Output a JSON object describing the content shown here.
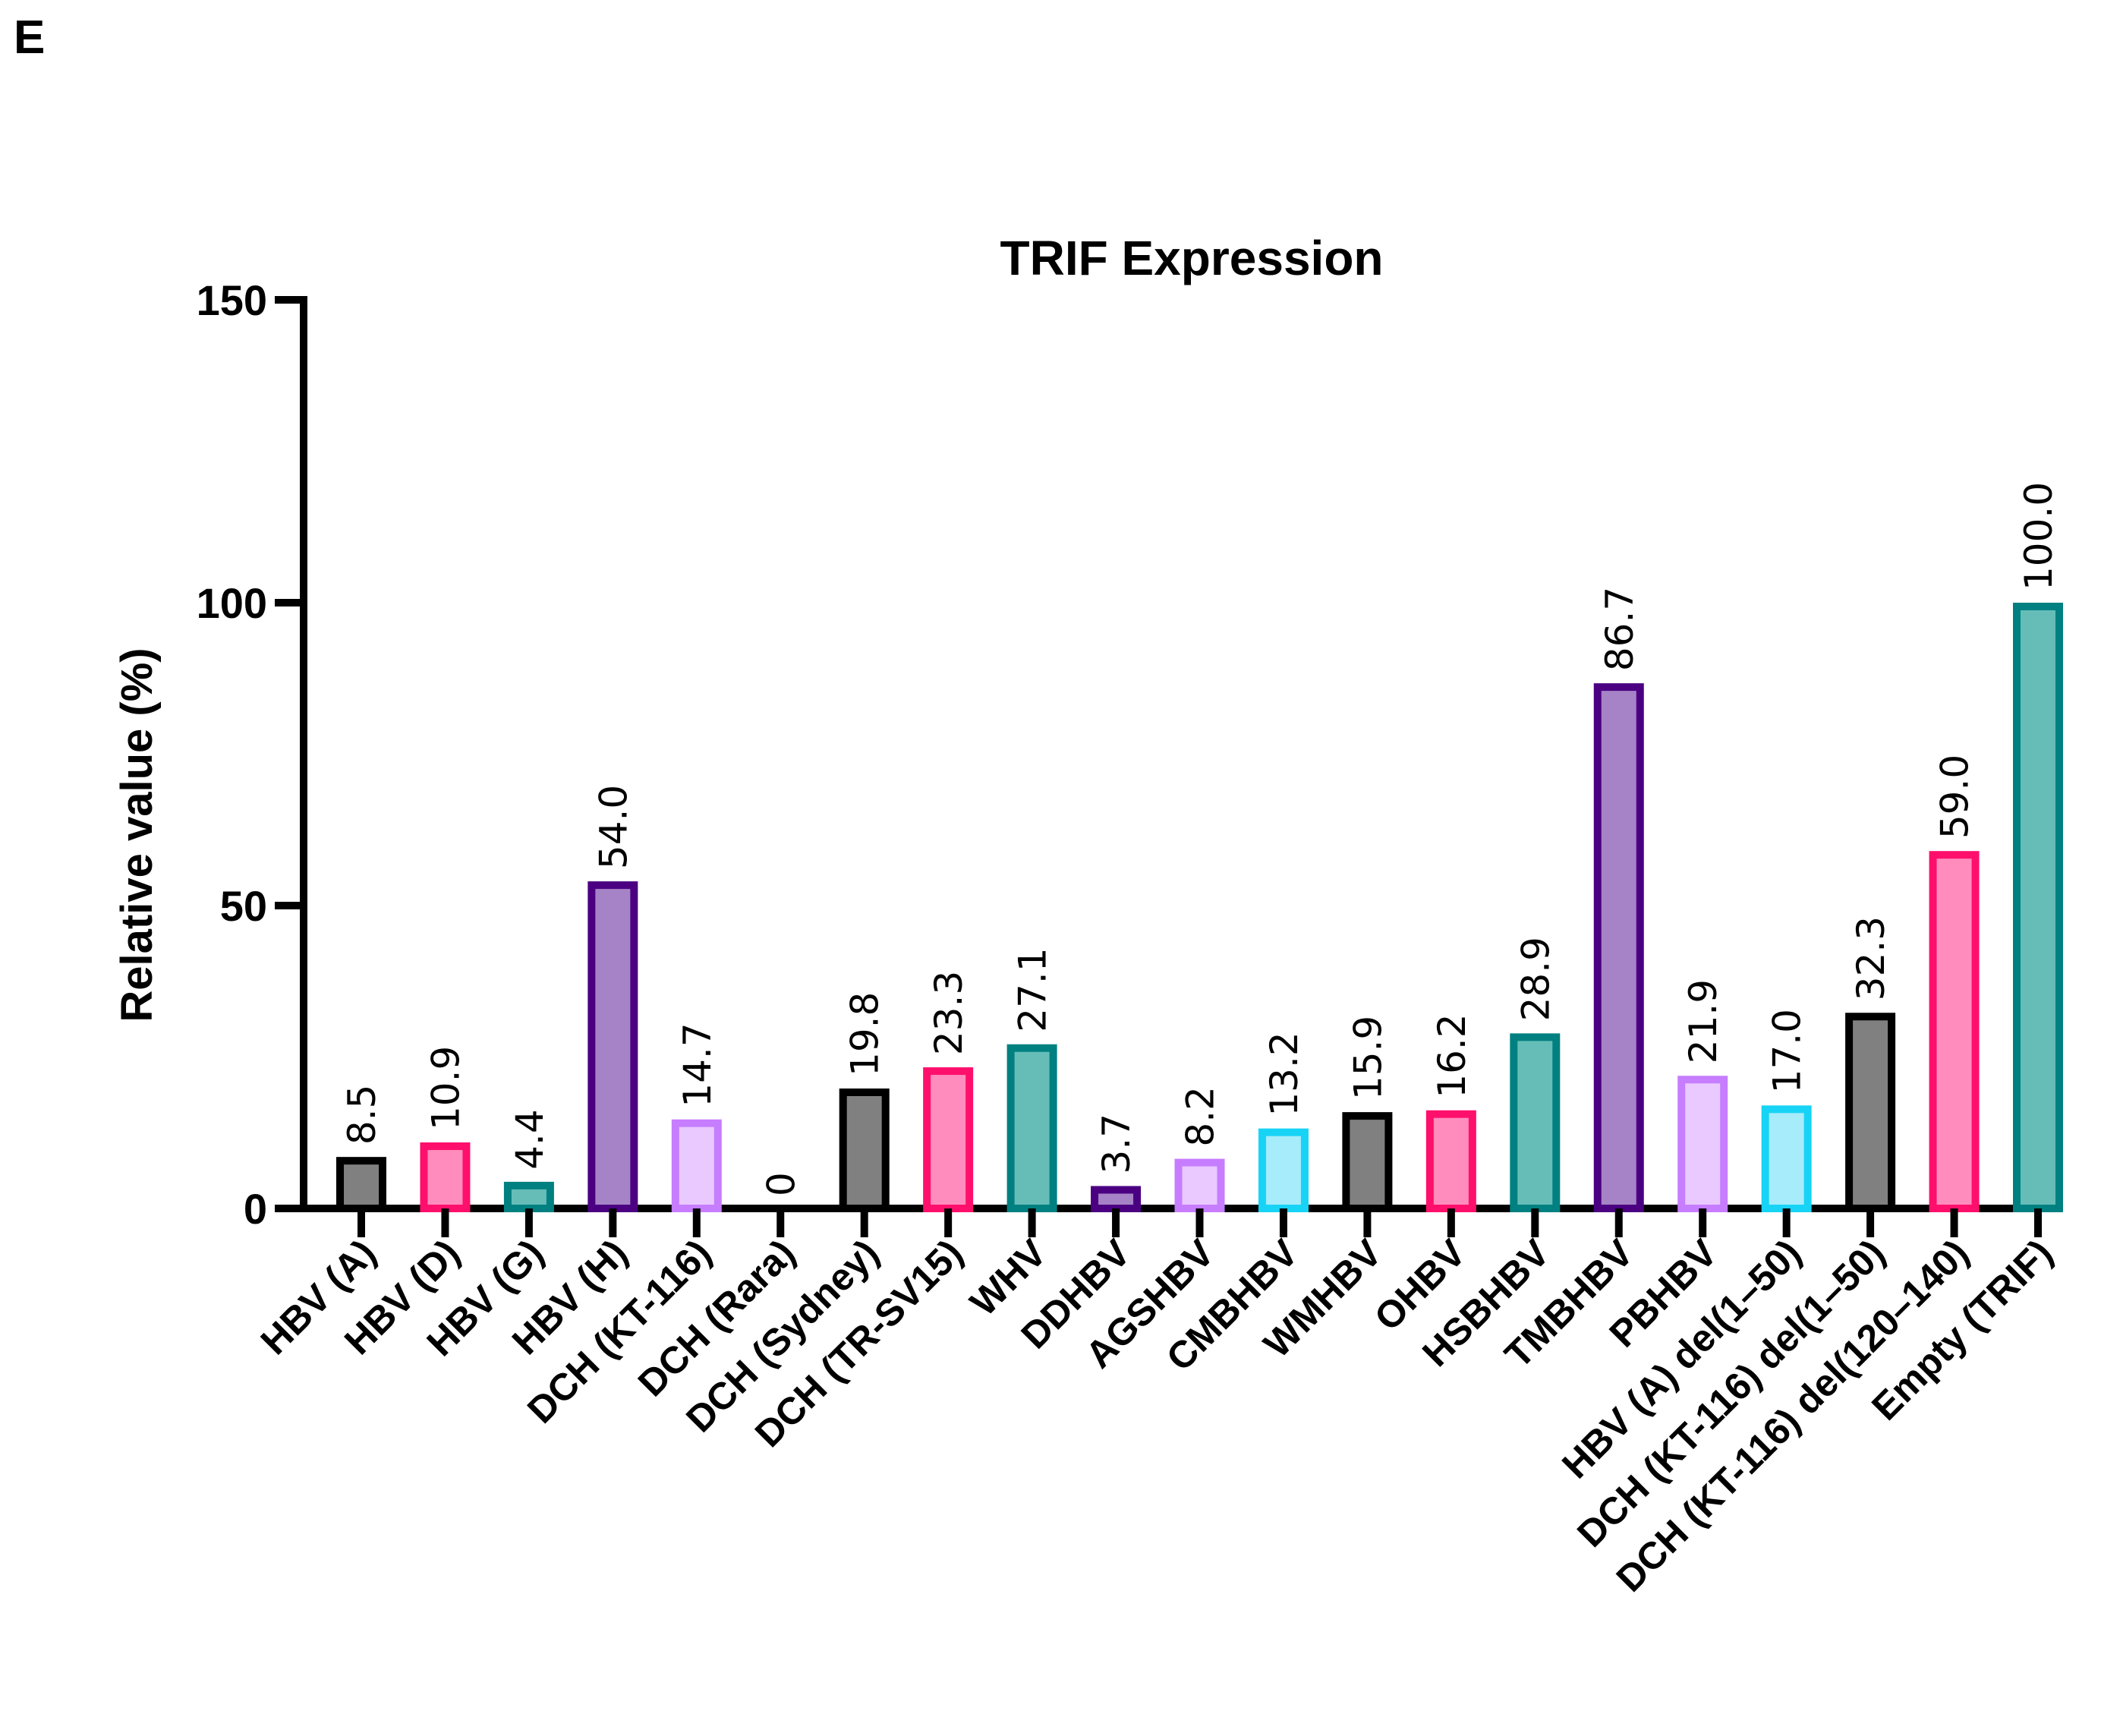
{
  "panel_label": "E",
  "chart_data": {
    "type": "bar",
    "title": "TRIF Expression",
    "xlabel": "",
    "ylabel": "Relative value (%)",
    "ylim": [
      0,
      150
    ],
    "yticks": [
      0,
      50,
      100,
      150
    ],
    "grid": false,
    "categories": [
      "HBV (A)",
      "HBV (D)",
      "HBV (G)",
      "HBV (H)",
      "DCH (KT-116)",
      "DCH (Rara)",
      "DCH (Sydney)",
      "DCH (TR-SV15)",
      "WHV",
      "DDHBV",
      "AGSHBV",
      "CMBHBV",
      "WMHBV",
      "OHBV",
      "HSBHBV",
      "TMBHBV",
      "PBHBV",
      "HBV (A) del(1–50)",
      "DCH (KT-116) del(1–50)",
      "DCH (KT-116) del(120–140)",
      "Empty (TRIF)"
    ],
    "values": [
      8.5,
      10.9,
      4.4,
      54.0,
      14.7,
      0,
      19.8,
      23.3,
      27.1,
      3.7,
      8.2,
      13.2,
      15.9,
      16.2,
      28.9,
      86.7,
      21.9,
      17.0,
      32.3,
      59.0,
      100.0
    ],
    "value_labels": [
      "8.5",
      "10.9",
      "4.4",
      "54.0",
      "14.7",
      "0",
      "19.8",
      "23.3",
      "27.1",
      "3.7",
      "8.2",
      "13.2",
      "15.9",
      "16.2",
      "28.9",
      "86.7",
      "21.9",
      "17.0",
      "32.3",
      "59.0",
      "100.0"
    ],
    "bar_colors": [
      {
        "edge": "#000000",
        "fill": "#808080"
      },
      {
        "edge": "#ff0f6c",
        "fill": "#ff8cbc"
      },
      {
        "edge": "#008080",
        "fill": "#66bdb8"
      },
      {
        "edge": "#4b0082",
        "fill": "#a683c6"
      },
      {
        "edge": "#c77dff",
        "fill": "#e9c9ff"
      },
      {
        "edge": "#000000",
        "fill": "#808080"
      },
      {
        "edge": "#000000",
        "fill": "#808080"
      },
      {
        "edge": "#ff0f6c",
        "fill": "#ff8cbc"
      },
      {
        "edge": "#008080",
        "fill": "#66bdb8"
      },
      {
        "edge": "#4b0082",
        "fill": "#a683c6"
      },
      {
        "edge": "#c77dff",
        "fill": "#e9c9ff"
      },
      {
        "edge": "#17d3f5",
        "fill": "#a6ecfb"
      },
      {
        "edge": "#000000",
        "fill": "#808080"
      },
      {
        "edge": "#ff0f6c",
        "fill": "#ff8cbc"
      },
      {
        "edge": "#008080",
        "fill": "#66bdb8"
      },
      {
        "edge": "#4b0082",
        "fill": "#a683c6"
      },
      {
        "edge": "#c77dff",
        "fill": "#e9c9ff"
      },
      {
        "edge": "#17d3f5",
        "fill": "#a6ecfb"
      },
      {
        "edge": "#000000",
        "fill": "#808080"
      },
      {
        "edge": "#ff0f6c",
        "fill": "#ff8cbc"
      },
      {
        "edge": "#008080",
        "fill": "#66bdb8"
      }
    ]
  }
}
